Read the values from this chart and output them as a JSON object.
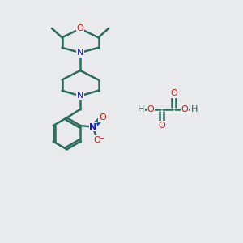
{
  "bg_color": "#e8eaeb",
  "bond_color": "#2d6b5e",
  "N_color": "#1a1acc",
  "O_color": "#cc1a1a",
  "H_color": "#2d6b5e",
  "line_width": 1.8,
  "font_size": 8,
  "figsize": [
    3.0,
    3.0
  ],
  "dpi": 100,
  "xlim": [
    0,
    10
  ],
  "ylim": [
    0,
    10
  ]
}
